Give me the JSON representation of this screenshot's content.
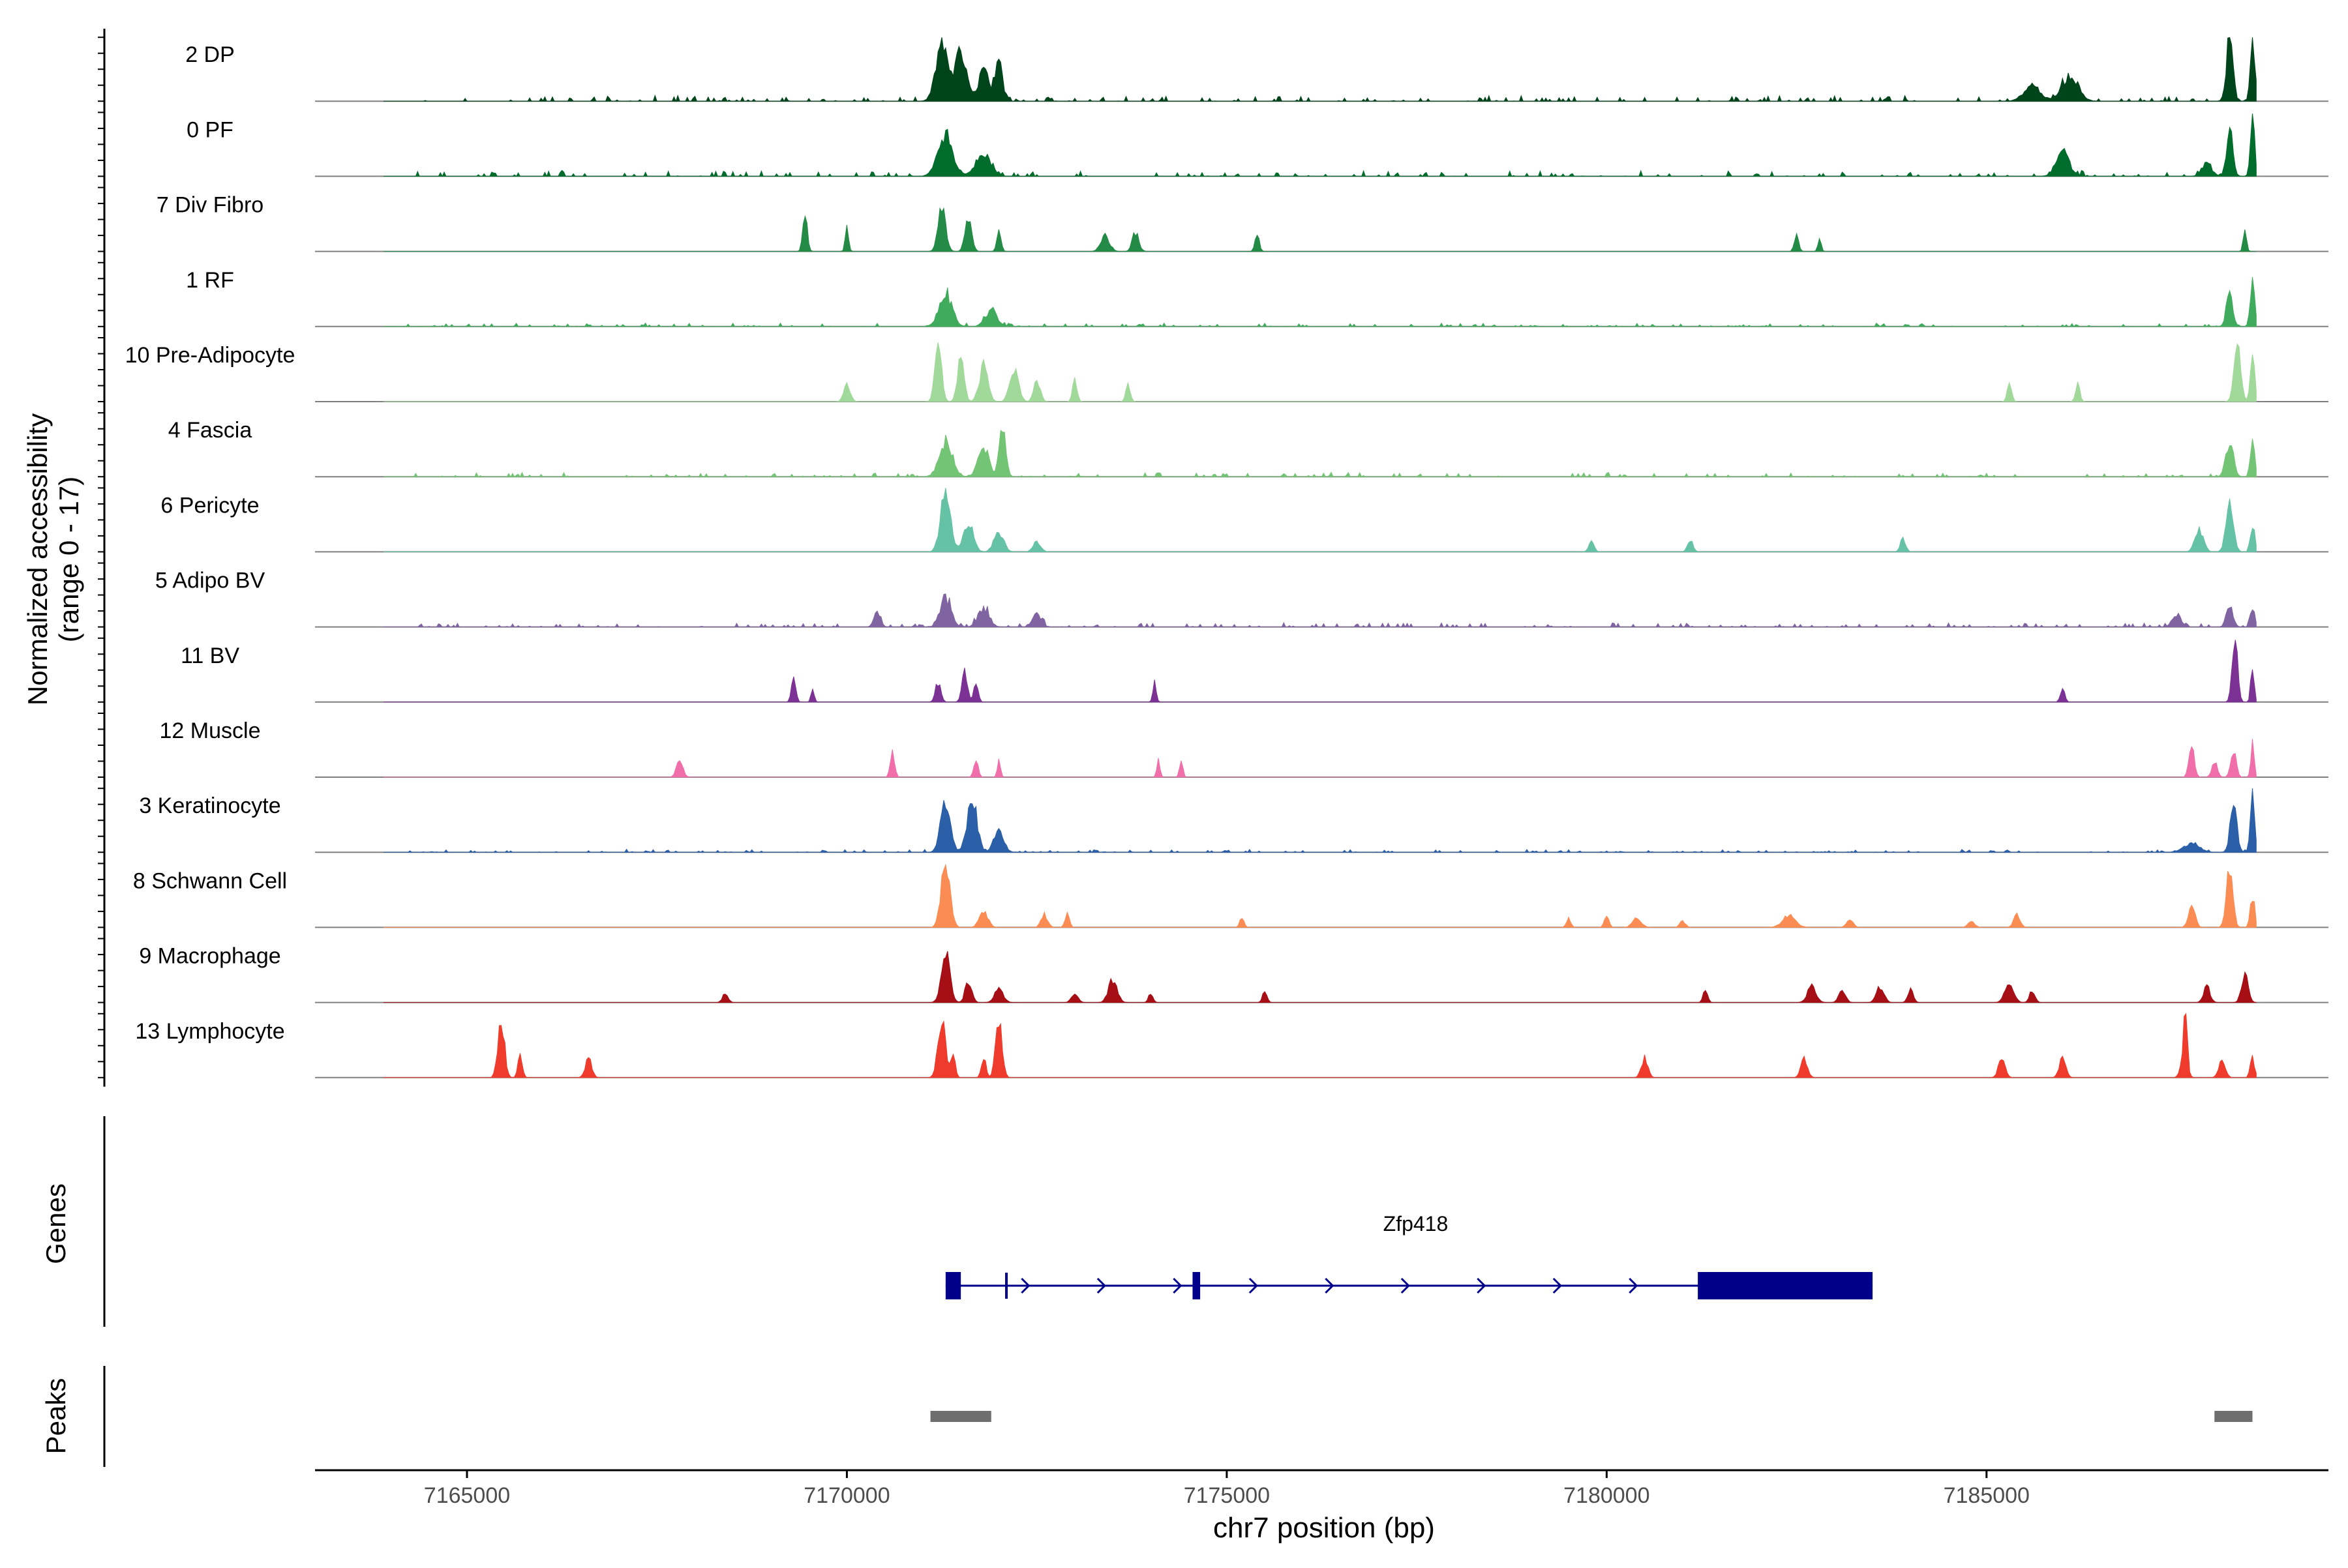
{
  "chart_data": {
    "type": "area",
    "title": "",
    "chromosome": "chr7",
    "xlabel": "chr7 position (bp)",
    "ylabel_line1": "Normalized accessibility",
    "ylabel_line2": "(range 0 - 17)",
    "y_range": [
      0,
      17
    ],
    "xlim": [
      7163000,
      7189500
    ],
    "x_ticks": [
      7165000,
      7170000,
      7175000,
      7180000,
      7185000
    ],
    "x_tick_labels": [
      "7165000",
      "7170000",
      "7175000",
      "7180000",
      "7185000"
    ],
    "track_ticks_per_track": 5,
    "series": [
      {
        "name": "2 DP",
        "color": "#00441b",
        "noise": 0.08,
        "peaks": [
          [
            7171250,
            0.9,
            110
          ],
          [
            7171500,
            0.7,
            110
          ],
          [
            7171800,
            0.5,
            90
          ],
          [
            7172000,
            0.6,
            70
          ],
          [
            7186100,
            0.4,
            150
          ],
          [
            7185600,
            0.25,
            150
          ],
          [
            7188200,
            1.0,
            60
          ],
          [
            7188500,
            1.0,
            40
          ]
        ]
      },
      {
        "name": "0 PF",
        "color": "#006d2c",
        "noise": 0.08,
        "peaks": [
          [
            7171300,
            0.6,
            140
          ],
          [
            7171800,
            0.35,
            140
          ],
          [
            7186000,
            0.4,
            120
          ],
          [
            7188200,
            0.7,
            60
          ],
          [
            7188500,
            0.85,
            40
          ],
          [
            7187900,
            0.2,
            90
          ]
        ]
      },
      {
        "name": "7 Div Fibro",
        "color": "#238b45",
        "noise": 0.0,
        "peaks": [
          [
            7169450,
            0.6,
            40
          ],
          [
            7170000,
            0.35,
            30
          ],
          [
            7171250,
            0.65,
            70
          ],
          [
            7171600,
            0.55,
            60
          ],
          [
            7172000,
            0.3,
            40
          ],
          [
            7173400,
            0.25,
            80
          ],
          [
            7173800,
            0.3,
            60
          ],
          [
            7175400,
            0.25,
            40
          ],
          [
            7182500,
            0.25,
            40
          ],
          [
            7182800,
            0.2,
            30
          ],
          [
            7188400,
            0.3,
            30
          ]
        ]
      },
      {
        "name": "1 RF",
        "color": "#41ab5d",
        "noise": 0.05,
        "peaks": [
          [
            7171300,
            0.5,
            120
          ],
          [
            7171900,
            0.25,
            110
          ],
          [
            7188200,
            0.5,
            60
          ],
          [
            7188500,
            0.8,
            40
          ]
        ]
      },
      {
        "name": "10 Pre-Adipocyte",
        "color": "#a1d99b",
        "noise": 0.0,
        "peaks": [
          [
            7170000,
            0.3,
            60
          ],
          [
            7171200,
            1.0,
            60
          ],
          [
            7171500,
            0.75,
            60
          ],
          [
            7171800,
            0.55,
            80
          ],
          [
            7172200,
            0.5,
            80
          ],
          [
            7172500,
            0.35,
            60
          ],
          [
            7173000,
            0.35,
            40
          ],
          [
            7173700,
            0.3,
            40
          ],
          [
            7185300,
            0.3,
            40
          ],
          [
            7186200,
            0.3,
            40
          ],
          [
            7188300,
            0.95,
            60
          ],
          [
            7188500,
            0.7,
            40
          ]
        ]
      },
      {
        "name": "4 Fascia",
        "color": "#74c476",
        "noise": 0.06,
        "peaks": [
          [
            7171300,
            0.55,
            120
          ],
          [
            7171800,
            0.45,
            100
          ],
          [
            7172050,
            0.75,
            60
          ],
          [
            7188200,
            0.55,
            70
          ],
          [
            7188500,
            0.6,
            40
          ]
        ]
      },
      {
        "name": "6 Pericyte",
        "color": "#66c2a5",
        "noise": 0.0,
        "peaks": [
          [
            7171300,
            1.0,
            90
          ],
          [
            7171600,
            0.45,
            90
          ],
          [
            7172000,
            0.3,
            90
          ],
          [
            7172500,
            0.15,
            70
          ],
          [
            7179800,
            0.15,
            50
          ],
          [
            7181100,
            0.2,
            50
          ],
          [
            7183900,
            0.2,
            50
          ],
          [
            7187800,
            0.35,
            80
          ],
          [
            7188200,
            0.7,
            70
          ],
          [
            7188500,
            0.45,
            40
          ]
        ]
      },
      {
        "name": "5 Adipo BV",
        "color": "#8064a2",
        "noise": 0.06,
        "peaks": [
          [
            7170400,
            0.25,
            60
          ],
          [
            7171300,
            0.45,
            100
          ],
          [
            7171800,
            0.3,
            100
          ],
          [
            7172500,
            0.2,
            80
          ],
          [
            7187500,
            0.2,
            80
          ],
          [
            7188200,
            0.35,
            60
          ],
          [
            7188500,
            0.3,
            40
          ]
        ]
      },
      {
        "name": "11 BV",
        "color": "#7b3294",
        "noise": 0.0,
        "peaks": [
          [
            7169300,
            0.35,
            40
          ],
          [
            7169550,
            0.2,
            30
          ],
          [
            7171200,
            0.3,
            50
          ],
          [
            7171550,
            0.45,
            50
          ],
          [
            7171700,
            0.3,
            40
          ],
          [
            7174050,
            0.35,
            30
          ],
          [
            7186000,
            0.22,
            40
          ],
          [
            7188270,
            1.0,
            50
          ],
          [
            7188500,
            0.6,
            30
          ]
        ]
      },
      {
        "name": "12 Muscle",
        "color": "#f06eaa",
        "noise": 0.0,
        "peaks": [
          [
            7167800,
            0.25,
            60
          ],
          [
            7170600,
            0.4,
            40
          ],
          [
            7171700,
            0.25,
            40
          ],
          [
            7172000,
            0.25,
            30
          ],
          [
            7174100,
            0.25,
            30
          ],
          [
            7174400,
            0.25,
            30
          ],
          [
            7187700,
            0.45,
            50
          ],
          [
            7188000,
            0.25,
            50
          ],
          [
            7188250,
            0.4,
            50
          ],
          [
            7188500,
            0.5,
            30
          ]
        ]
      },
      {
        "name": "3 Keratinocyte",
        "color": "#2b5fa8",
        "noise": 0.04,
        "peaks": [
          [
            7171300,
            0.8,
            90
          ],
          [
            7171650,
            0.8,
            90
          ],
          [
            7172000,
            0.35,
            90
          ],
          [
            7187700,
            0.15,
            140
          ],
          [
            7188250,
            0.8,
            60
          ],
          [
            7188500,
            1.0,
            40
          ]
        ]
      },
      {
        "name": "8 Schwann Cell",
        "color": "#fb8c54",
        "noise": 0.0,
        "peaks": [
          [
            7171300,
            1.0,
            80
          ],
          [
            7171800,
            0.25,
            80
          ],
          [
            7172600,
            0.2,
            60
          ],
          [
            7172900,
            0.2,
            40
          ],
          [
            7175200,
            0.15,
            40
          ],
          [
            7179500,
            0.15,
            40
          ],
          [
            7180000,
            0.2,
            40
          ],
          [
            7180400,
            0.15,
            80
          ],
          [
            7181000,
            0.1,
            50
          ],
          [
            7182400,
            0.18,
            120
          ],
          [
            7183200,
            0.12,
            60
          ],
          [
            7184800,
            0.1,
            60
          ],
          [
            7185400,
            0.2,
            60
          ],
          [
            7187700,
            0.35,
            60
          ],
          [
            7188200,
            0.9,
            60
          ],
          [
            7188500,
            0.5,
            40
          ]
        ]
      },
      {
        "name": "9 Macrophage",
        "color": "#a50f15",
        "noise": 0.0,
        "peaks": [
          [
            7168400,
            0.15,
            50
          ],
          [
            7171300,
            0.75,
            80
          ],
          [
            7171600,
            0.35,
            60
          ],
          [
            7172000,
            0.2,
            80
          ],
          [
            7173000,
            0.15,
            60
          ],
          [
            7173500,
            0.35,
            80
          ],
          [
            7174000,
            0.15,
            40
          ],
          [
            7175500,
            0.2,
            40
          ],
          [
            7181300,
            0.2,
            40
          ],
          [
            7182700,
            0.25,
            80
          ],
          [
            7183100,
            0.2,
            60
          ],
          [
            7183600,
            0.25,
            70
          ],
          [
            7184000,
            0.2,
            50
          ],
          [
            7185300,
            0.3,
            80
          ],
          [
            7185600,
            0.2,
            50
          ],
          [
            7187900,
            0.25,
            60
          ],
          [
            7188400,
            0.45,
            60
          ]
        ]
      },
      {
        "name": "13 Lymphocyte",
        "color": "#ef3b2c",
        "noise": 0.0,
        "peaks": [
          [
            7165450,
            0.95,
            60
          ],
          [
            7165700,
            0.35,
            40
          ],
          [
            7166600,
            0.3,
            60
          ],
          [
            7171250,
            0.95,
            70
          ],
          [
            7171400,
            0.35,
            40
          ],
          [
            7171800,
            0.35,
            40
          ],
          [
            7172000,
            0.95,
            60
          ],
          [
            7180500,
            0.3,
            60
          ],
          [
            7182600,
            0.3,
            60
          ],
          [
            7185200,
            0.3,
            60
          ],
          [
            7186000,
            0.3,
            60
          ],
          [
            7187600,
            0.3,
            60
          ],
          [
            7187620,
            0.95,
            30
          ],
          [
            7188100,
            0.3,
            60
          ],
          [
            7188500,
            0.3,
            40
          ]
        ]
      }
    ],
    "genes_label": "Genes",
    "gene": {
      "name": "Zfp418",
      "strand": "+",
      "start": 7171300,
      "end": 7183500,
      "exons": [
        [
          7171300,
          7171500
        ],
        [
          7172100,
          7172120
        ],
        [
          7174550,
          7174650
        ],
        [
          7181200,
          7183500
        ]
      ],
      "arrows": [
        7171300,
        7172300,
        7173300,
        7174300,
        7175300,
        7176300,
        7177300,
        7178300,
        7179300,
        7180300
      ],
      "color": "#00008b"
    },
    "peaks_label": "Peaks",
    "peaks_color": "#6e6e6e",
    "peak_regions": [
      [
        7171100,
        7171900
      ],
      [
        7188000,
        7188500
      ]
    ]
  }
}
